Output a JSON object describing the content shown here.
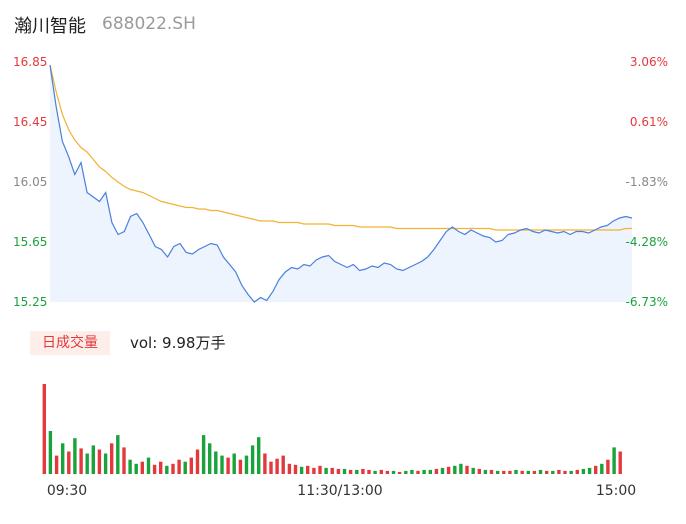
{
  "header": {
    "name": "瀚川智能",
    "code": "688022.SH"
  },
  "volume_tag": "日成交量",
  "volume_text": "vol: 9.98万手",
  "colors": {
    "price_line": "#4a7fe0",
    "avg_line": "#f2b233",
    "up": "#e4393c",
    "down": "#1aa23c",
    "area": "#eef4fd"
  },
  "chart_data": [
    {
      "type": "line",
      "y_left_labels": [
        "16.85",
        "16.45",
        "16.05",
        "15.65",
        "15.25"
      ],
      "y_right_labels": [
        "3.06%",
        "0.61%",
        "-1.83%",
        "-4.28%",
        "-6.73%"
      ],
      "ylim": [
        15.25,
        16.85
      ],
      "x_tick_labels": [
        "09:30",
        "11:30/13:00",
        "15:00"
      ],
      "price": [
        16.83,
        16.55,
        16.32,
        16.22,
        16.1,
        16.18,
        15.98,
        15.95,
        15.92,
        15.98,
        15.78,
        15.7,
        15.72,
        15.82,
        15.84,
        15.78,
        15.7,
        15.62,
        15.6,
        15.55,
        15.62,
        15.64,
        15.58,
        15.57,
        15.6,
        15.62,
        15.64,
        15.63,
        15.55,
        15.5,
        15.45,
        15.36,
        15.3,
        15.25,
        15.28,
        15.26,
        15.32,
        15.4,
        15.45,
        15.48,
        15.47,
        15.5,
        15.49,
        15.53,
        15.55,
        15.56,
        15.52,
        15.5,
        15.48,
        15.5,
        15.46,
        15.47,
        15.49,
        15.48,
        15.51,
        15.5,
        15.47,
        15.46,
        15.48,
        15.5,
        15.52,
        15.55,
        15.6,
        15.66,
        15.72,
        15.75,
        15.72,
        15.7,
        15.73,
        15.71,
        15.69,
        15.68,
        15.65,
        15.66,
        15.7,
        15.71,
        15.73,
        15.74,
        15.72,
        15.71,
        15.73,
        15.72,
        15.71,
        15.72,
        15.7,
        15.72,
        15.72,
        15.71,
        15.73,
        15.75,
        15.76,
        15.79,
        15.81,
        15.82,
        15.81
      ],
      "avg": [
        16.83,
        16.65,
        16.5,
        16.4,
        16.33,
        16.28,
        16.25,
        16.2,
        16.15,
        16.12,
        16.08,
        16.05,
        16.02,
        16.0,
        15.99,
        15.98,
        15.96,
        15.94,
        15.92,
        15.91,
        15.9,
        15.89,
        15.88,
        15.88,
        15.87,
        15.87,
        15.86,
        15.86,
        15.85,
        15.84,
        15.83,
        15.82,
        15.81,
        15.8,
        15.79,
        15.79,
        15.79,
        15.78,
        15.78,
        15.78,
        15.78,
        15.77,
        15.77,
        15.77,
        15.77,
        15.77,
        15.76,
        15.76,
        15.76,
        15.76,
        15.75,
        15.75,
        15.75,
        15.75,
        15.75,
        15.75,
        15.74,
        15.74,
        15.74,
        15.74,
        15.74,
        15.74,
        15.74,
        15.74,
        15.74,
        15.74,
        15.74,
        15.74,
        15.74,
        15.74,
        15.74,
        15.74,
        15.73,
        15.73,
        15.73,
        15.73,
        15.73,
        15.73,
        15.73,
        15.73,
        15.73,
        15.73,
        15.73,
        15.73,
        15.73,
        15.73,
        15.73,
        15.73,
        15.73,
        15.73,
        15.73,
        15.73,
        15.73,
        15.74,
        15.74
      ]
    },
    {
      "type": "bar",
      "volume": [
        88,
        42,
        18,
        30,
        22,
        35,
        25,
        20,
        28,
        24,
        20,
        30,
        38,
        26,
        14,
        10,
        12,
        16,
        9,
        12,
        8,
        10,
        14,
        12,
        16,
        24,
        38,
        30,
        22,
        18,
        16,
        20,
        14,
        18,
        28,
        36,
        20,
        12,
        15,
        18,
        10,
        9,
        7,
        8,
        6,
        8,
        6,
        6,
        5,
        5,
        4,
        4,
        5,
        4,
        3,
        4,
        3,
        3,
        2,
        3,
        4,
        3,
        4,
        4,
        5,
        6,
        7,
        8,
        10,
        8,
        6,
        5,
        4,
        4,
        3,
        3,
        3,
        4,
        3,
        3,
        3,
        4,
        3,
        3,
        4,
        3,
        3,
        4,
        5,
        6,
        8,
        10,
        14,
        26,
        22
      ],
      "volume_up": [
        1,
        0,
        1,
        0,
        1,
        0,
        1,
        0,
        0,
        1,
        0,
        1,
        0,
        1,
        0,
        0,
        1,
        0,
        1,
        1,
        0,
        1,
        1,
        0,
        1,
        1,
        0,
        0,
        0,
        0,
        1,
        0,
        1,
        0,
        0,
        0,
        1,
        1,
        1,
        1,
        1,
        1,
        0,
        1,
        1,
        1,
        0,
        1,
        1,
        0,
        1,
        0,
        1,
        1,
        0,
        1,
        1,
        0,
        1,
        0,
        0,
        1,
        0,
        0,
        1,
        0,
        1,
        0,
        0,
        1,
        0,
        1,
        0,
        1,
        0,
        1,
        1,
        0,
        1,
        0,
        1,
        0,
        1,
        0,
        1,
        1,
        0,
        1,
        0,
        0,
        1,
        0,
        1,
        0,
        1
      ]
    }
  ]
}
